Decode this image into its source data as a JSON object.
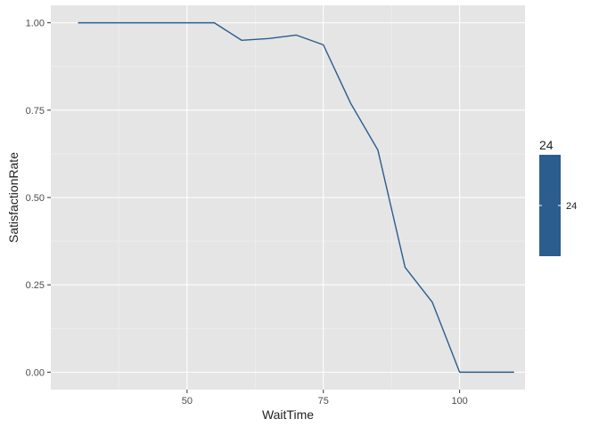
{
  "chart_data": {
    "type": "line",
    "title": "",
    "xlabel": "WaitTime",
    "ylabel": "SatisfactionRate",
    "xlim": [
      25,
      112
    ],
    "ylim": [
      -0.05,
      1.05
    ],
    "xticks": [
      50,
      75,
      100
    ],
    "xtick_labels": [
      "50",
      "75",
      "100"
    ],
    "yticks": [
      0,
      0.25,
      0.5,
      0.75,
      1.0
    ],
    "ytick_labels": [
      "0.00",
      "0.25",
      "0.50",
      "0.75",
      "1.00"
    ],
    "grid": true,
    "legend_placement": "right",
    "legend": {
      "title": "24",
      "labels": [
        "24"
      ]
    },
    "series": [
      {
        "color": "#2b5d8e",
        "x": [
          30,
          35,
          40,
          45,
          50,
          55,
          60,
          65,
          70,
          75,
          80,
          85,
          90,
          95,
          100,
          105,
          110
        ],
        "y": [
          1.0,
          1.0,
          1.0,
          1.0,
          1.0,
          1.0,
          0.95,
          0.955,
          0.965,
          0.937,
          0.77,
          0.636,
          0.3,
          0.2,
          0.0,
          0.0,
          0.0
        ]
      }
    ]
  },
  "colors": {
    "panel_bg": "#e5e5e5",
    "grid_major": "#ffffff",
    "grid_minor": "#f2f2f2",
    "line": "#2b5d8e",
    "legend_bar": "#2b5d8e"
  }
}
